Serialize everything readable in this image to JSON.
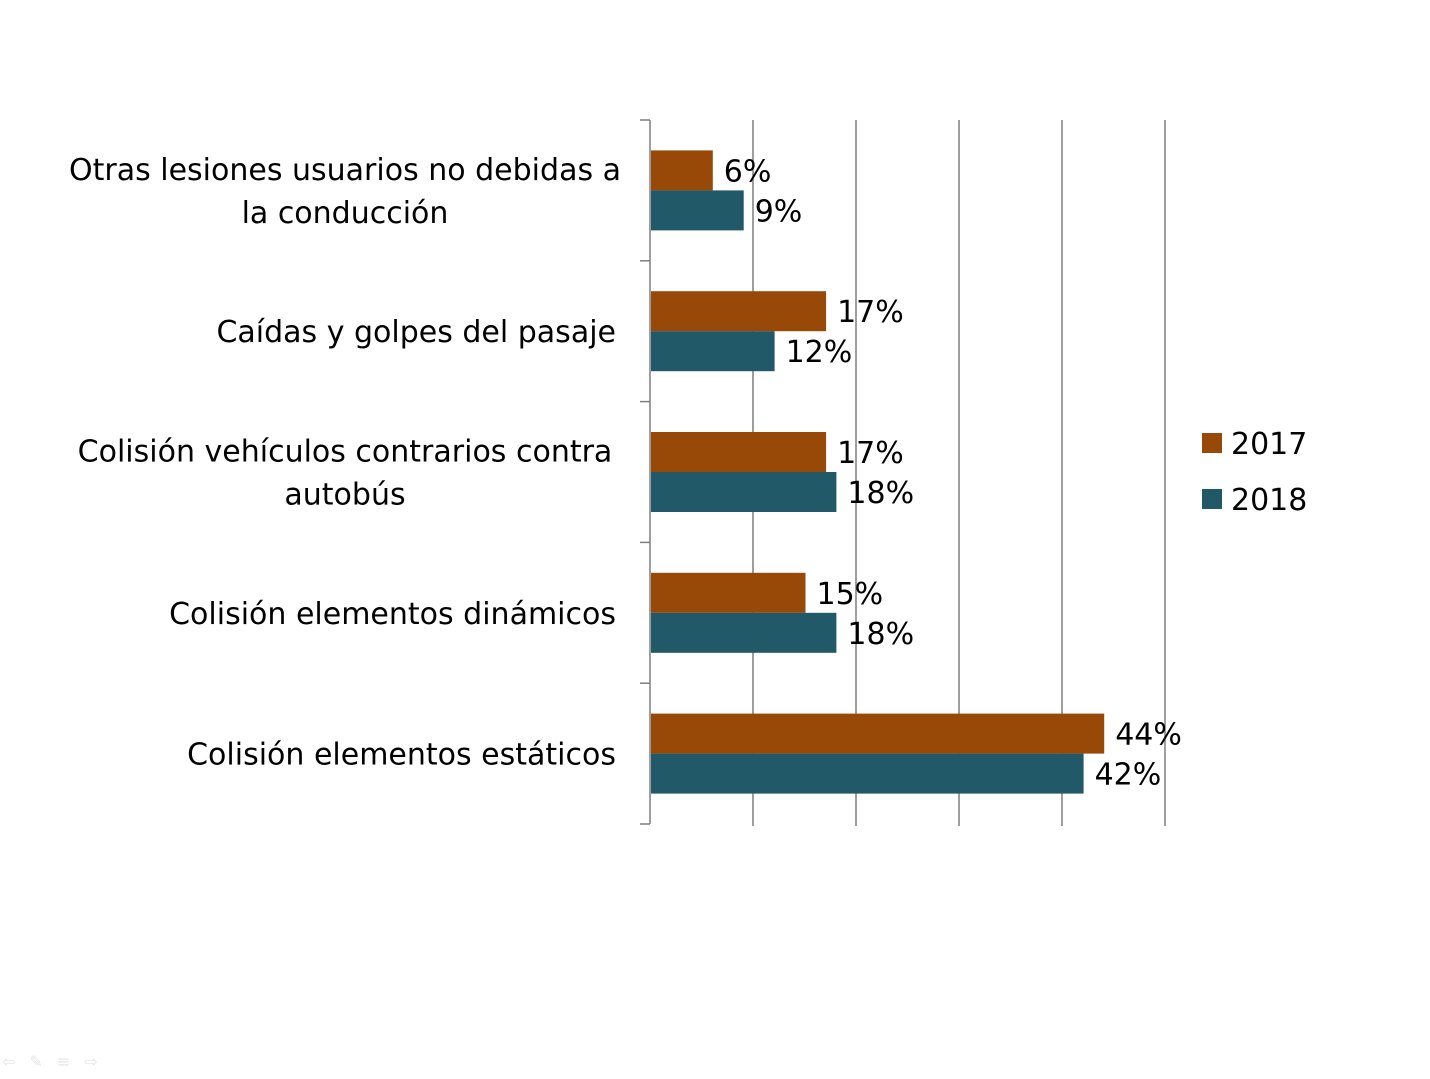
{
  "chart_data": {
    "type": "bar",
    "orientation": "horizontal",
    "categories": [
      [
        "Otras lesiones usuarios no debidas a",
        "la conducción"
      ],
      [
        "Caídas y golpes del pasaje"
      ],
      [
        "Colisión vehículos contrarios contra",
        "autobús"
      ],
      [
        "Colisión elementos dinámicos"
      ],
      [
        "Colisión elementos estáticos"
      ]
    ],
    "series": [
      {
        "name": "2017",
        "color": "#984807",
        "values": [
          6,
          17,
          17,
          15,
          44
        ],
        "labels": [
          "6%",
          "17%",
          "17%",
          "15%",
          "44%"
        ]
      },
      {
        "name": "2018",
        "color": "#215968",
        "values": [
          9,
          12,
          18,
          18,
          42
        ],
        "labels": [
          "9%",
          "12%",
          "18%",
          "18%",
          "42%"
        ]
      }
    ],
    "xlim": [
      0,
      50
    ],
    "x_grid_step": 10,
    "grid": true,
    "legend_position": "right",
    "title": "",
    "xlabel": "",
    "ylabel": ""
  },
  "nav_icons": [
    "back-arrow-icon",
    "pen-icon",
    "menu-icon",
    "forward-arrow-icon"
  ]
}
